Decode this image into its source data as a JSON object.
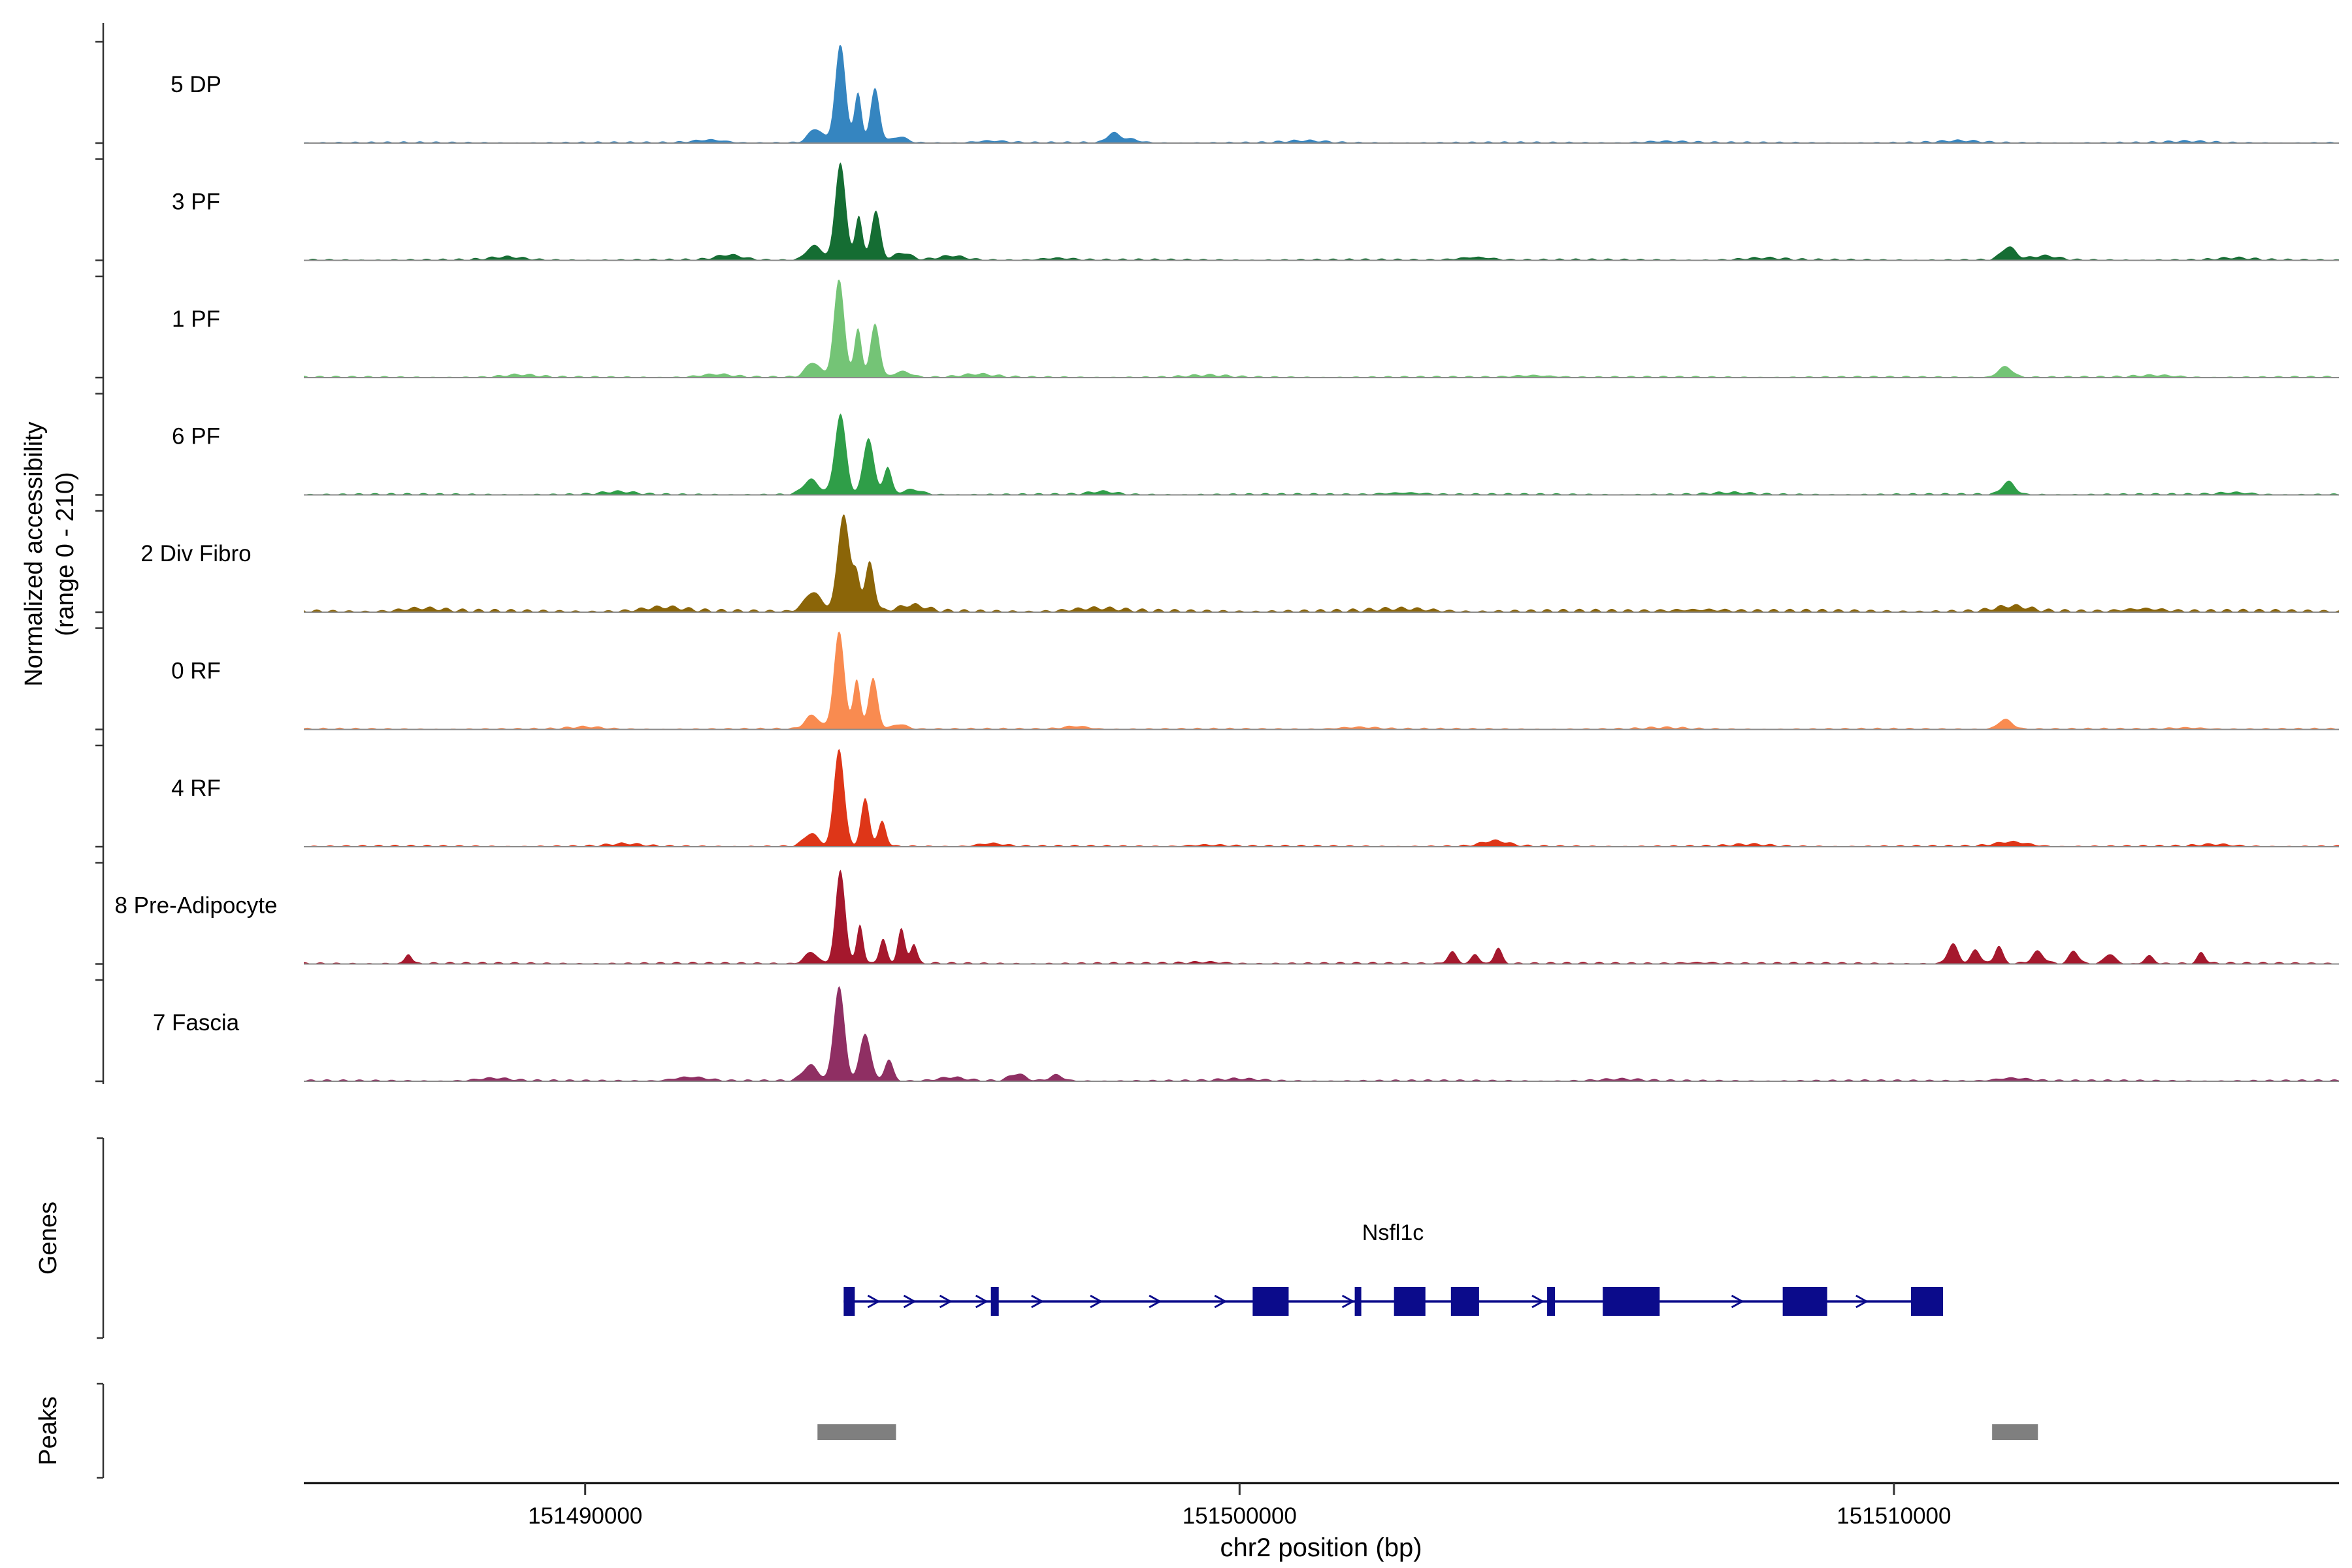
{
  "y_axis_label": {
    "line1": "Normalized accessibility",
    "line2": "(range 0 - 210)"
  },
  "genes_section_label": "Genes",
  "peaks_section_label": "Peaks",
  "chart_data": {
    "type": "area",
    "subtype": "genome-coverage-tracks",
    "xlabel": "chr2 position (bp)",
    "x_domain": [
      151485700,
      151516800
    ],
    "x_ticks": [
      151490000,
      151500000,
      151510000
    ],
    "y_range_per_track": [
      0,
      210
    ],
    "baseline_color": "#8a8a8a",
    "peak_color": "#7f7f7f",
    "tracks": [
      {
        "label": "5 DP",
        "color": "#3585c0",
        "noise": 0.018,
        "bumps": [
          [
            151493900,
            80,
            1.0
          ],
          [
            151494170,
            55,
            0.5
          ],
          [
            151494430,
            70,
            0.55
          ],
          [
            151493520,
            110,
            0.14
          ],
          [
            151494800,
            120,
            0.06
          ],
          [
            151498060,
            90,
            0.09
          ],
          [
            151498300,
            150,
            0.04
          ],
          [
            151491900,
            250,
            0.03
          ],
          [
            151496200,
            250,
            0.02
          ],
          [
            151501000,
            300,
            0.02
          ],
          [
            151506500,
            350,
            0.015
          ],
          [
            151511000,
            300,
            0.02
          ],
          [
            151514500,
            300,
            0.015
          ]
        ]
      },
      {
        "label": "3 PF",
        "color": "#156d33",
        "noise": 0.02,
        "bumps": [
          [
            151493900,
            80,
            1.0
          ],
          [
            151494180,
            55,
            0.45
          ],
          [
            151494440,
            70,
            0.5
          ],
          [
            151493500,
            120,
            0.15
          ],
          [
            151494850,
            130,
            0.07
          ],
          [
            151492200,
            200,
            0.05
          ],
          [
            151495600,
            200,
            0.04
          ],
          [
            151497200,
            250,
            0.02
          ],
          [
            151503600,
            250,
            0.03
          ],
          [
            151508000,
            300,
            0.02
          ],
          [
            151511750,
            110,
            0.13
          ],
          [
            151512300,
            200,
            0.04
          ],
          [
            151488800,
            250,
            0.03
          ],
          [
            151515200,
            250,
            0.02
          ]
        ]
      },
      {
        "label": "1 PF",
        "color": "#74c476",
        "noise": 0.02,
        "bumps": [
          [
            151493880,
            80,
            1.0
          ],
          [
            151494170,
            55,
            0.5
          ],
          [
            151494430,
            70,
            0.55
          ],
          [
            151493480,
            110,
            0.15
          ],
          [
            151494850,
            130,
            0.06
          ],
          [
            151492000,
            250,
            0.03
          ],
          [
            151496000,
            250,
            0.03
          ],
          [
            151499500,
            300,
            0.02
          ],
          [
            151504500,
            300,
            0.02
          ],
          [
            151511700,
            110,
            0.11
          ],
          [
            151489000,
            250,
            0.025
          ],
          [
            151514000,
            300,
            0.02
          ]
        ]
      },
      {
        "label": "6 PF",
        "color": "#2f9e48",
        "noise": 0.02,
        "bumps": [
          [
            151493900,
            85,
            0.82
          ],
          [
            151494330,
            80,
            0.58
          ],
          [
            151494620,
            60,
            0.28
          ],
          [
            151493450,
            120,
            0.15
          ],
          [
            151495000,
            150,
            0.05
          ],
          [
            151497900,
            200,
            0.03
          ],
          [
            151511750,
            100,
            0.13
          ],
          [
            151502500,
            300,
            0.02
          ],
          [
            151507500,
            300,
            0.018
          ],
          [
            151490500,
            250,
            0.028
          ],
          [
            151515200,
            250,
            0.02
          ]
        ]
      },
      {
        "label": "2 Div Fibro",
        "color": "#8b6508",
        "noise": 0.035,
        "bumps": [
          [
            151493950,
            90,
            1.0
          ],
          [
            151494350,
            70,
            0.5
          ],
          [
            151494150,
            50,
            0.35
          ],
          [
            151493480,
            130,
            0.2
          ],
          [
            151495000,
            200,
            0.06
          ],
          [
            151491200,
            300,
            0.04
          ],
          [
            151497800,
            350,
            0.03
          ],
          [
            151502500,
            400,
            0.025
          ],
          [
            151507000,
            400,
            0.02
          ],
          [
            151511800,
            250,
            0.05
          ],
          [
            151513800,
            300,
            0.03
          ],
          [
            151487500,
            300,
            0.03
          ]
        ]
      },
      {
        "label": "0 RF",
        "color": "#f98b50",
        "noise": 0.018,
        "bumps": [
          [
            151493880,
            80,
            1.0
          ],
          [
            151494150,
            55,
            0.5
          ],
          [
            151494400,
            70,
            0.52
          ],
          [
            151493470,
            110,
            0.14
          ],
          [
            151494800,
            120,
            0.05
          ],
          [
            151497500,
            200,
            0.03
          ],
          [
            151501800,
            300,
            0.02
          ],
          [
            151511700,
            110,
            0.1
          ],
          [
            151490000,
            250,
            0.022
          ],
          [
            151506500,
            300,
            0.015
          ],
          [
            151514500,
            280,
            0.015
          ]
        ]
      },
      {
        "label": "4 RF",
        "color": "#de3618",
        "noise": 0.02,
        "bumps": [
          [
            151493880,
            78,
            1.0
          ],
          [
            151494280,
            65,
            0.48
          ],
          [
            151494540,
            60,
            0.25
          ],
          [
            151493450,
            110,
            0.13
          ],
          [
            151496200,
            200,
            0.03
          ],
          [
            151503900,
            200,
            0.055
          ],
          [
            151507800,
            280,
            0.02
          ],
          [
            151511800,
            250,
            0.045
          ],
          [
            151490600,
            250,
            0.025
          ],
          [
            151514900,
            250,
            0.02
          ],
          [
            151499500,
            300,
            0.015
          ]
        ]
      },
      {
        "label": "8 Pre-Adipocyte",
        "color": "#a5182d",
        "noise": 0.022,
        "bumps": [
          [
            151493900,
            75,
            0.95
          ],
          [
            151494200,
            50,
            0.4
          ],
          [
            151494550,
            55,
            0.25
          ],
          [
            151494830,
            55,
            0.35
          ],
          [
            151495020,
            50,
            0.2
          ],
          [
            151493450,
            100,
            0.12
          ],
          [
            151487300,
            50,
            0.1
          ],
          [
            151503250,
            70,
            0.12
          ],
          [
            151503600,
            60,
            0.1
          ],
          [
            151503950,
            60,
            0.16
          ],
          [
            151510900,
            80,
            0.2
          ],
          [
            151511250,
            70,
            0.14
          ],
          [
            151511600,
            60,
            0.18
          ],
          [
            151512200,
            90,
            0.12
          ],
          [
            151512750,
            70,
            0.13
          ],
          [
            151513300,
            80,
            0.1
          ],
          [
            151513900,
            70,
            0.08
          ],
          [
            151514700,
            60,
            0.11
          ],
          [
            151499500,
            300,
            0.015
          ],
          [
            151507000,
            300,
            0.012
          ]
        ]
      },
      {
        "label": "7 Fascia",
        "color": "#8f2f63",
        "noise": 0.02,
        "bumps": [
          [
            151493880,
            82,
            0.97
          ],
          [
            151494280,
            85,
            0.48
          ],
          [
            151494640,
            65,
            0.22
          ],
          [
            151493440,
            115,
            0.16
          ],
          [
            151496600,
            120,
            0.07
          ],
          [
            151497200,
            100,
            0.06
          ],
          [
            151491600,
            250,
            0.04
          ],
          [
            151495600,
            200,
            0.035
          ],
          [
            151500000,
            300,
            0.02
          ],
          [
            151505800,
            300,
            0.018
          ],
          [
            151511800,
            250,
            0.03
          ],
          [
            151488600,
            250,
            0.028
          ]
        ]
      }
    ],
    "gene": {
      "name": "Nsfl1c",
      "color": "#0b0b8b",
      "strand": "+",
      "start": 151493950,
      "end": 151510750,
      "exons": [
        [
          151493950,
          151494120
        ],
        [
          151496200,
          151496320
        ],
        [
          151500200,
          151500750
        ],
        [
          151501760,
          151501860
        ],
        [
          151502360,
          151502840
        ],
        [
          151503230,
          151503660
        ],
        [
          151504700,
          151504820
        ],
        [
          151505550,
          151506420
        ],
        [
          151508300,
          151508980
        ],
        [
          151510260,
          151510750
        ]
      ],
      "arrows": [
        151494400,
        151494950,
        151495500,
        151496050,
        151496900,
        151497800,
        151498700,
        151499700,
        151501650,
        151504550,
        151507600,
        151509500
      ]
    },
    "peaks": [
      [
        151493550,
        151494750
      ],
      [
        151511500,
        151512200
      ]
    ]
  }
}
